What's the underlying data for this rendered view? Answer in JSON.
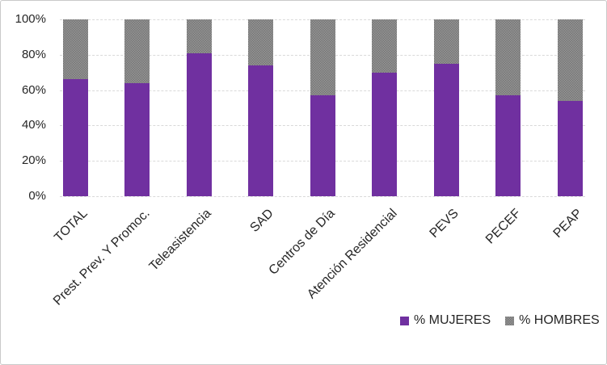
{
  "chart_data": {
    "type": "bar",
    "subtype": "stacked-100-percent",
    "title": "",
    "categories": [
      "TOTAL",
      "Prest. Prev. Y Promoc.",
      "Teleasistencia",
      "SAD",
      "Centros de Día",
      "Atención Residencial",
      "PEVS",
      "PECEF",
      "PEAP"
    ],
    "series": [
      {
        "name": "% MUJERES",
        "color": "#7030A0",
        "fill": "solid",
        "values": [
          66,
          64,
          81,
          74,
          57,
          70,
          75,
          57,
          54
        ]
      },
      {
        "name": "% HOMBRES",
        "color": "#868686",
        "fill": "dotted-texture",
        "values": [
          34,
          36,
          19,
          26,
          43,
          30,
          25,
          43,
          46
        ]
      }
    ],
    "xlabel": "",
    "ylabel": "",
    "ylim": [
      0,
      100
    ],
    "yticks": [
      "0%",
      "20%",
      "40%",
      "60%",
      "80%",
      "100%"
    ],
    "grid": true,
    "gridline_style": "dashed-light-gray",
    "legend_position": "bottom-right"
  },
  "colors": {
    "background": "#ffffff",
    "border": "#c9c9c9",
    "gridline": "#d9d9d9",
    "text": "#262626",
    "mujeres": "#7030A0",
    "hombres": "#868686"
  }
}
